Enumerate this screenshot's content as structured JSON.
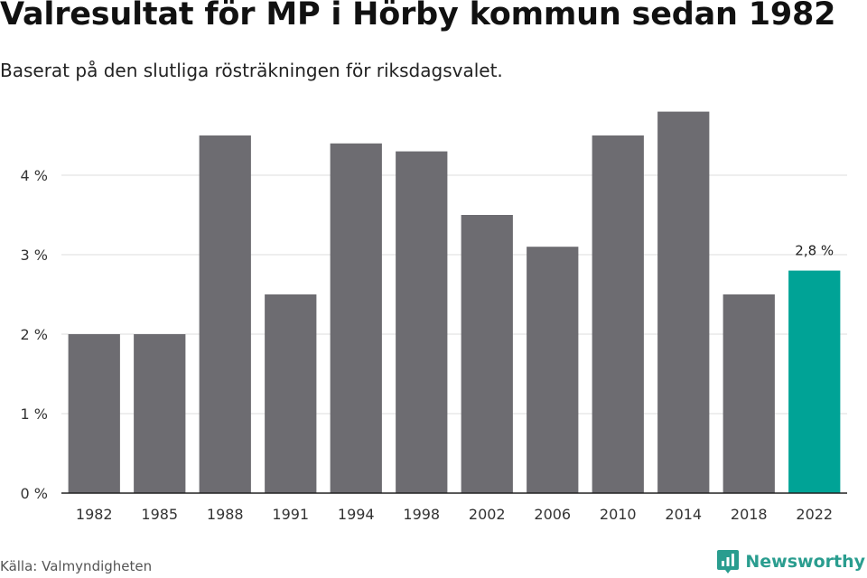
{
  "title": "Valresultat för MP i Hörby kommun sedan 1982",
  "subtitle": "Baserat på den slutliga rösträkningen för riksdagsvalet.",
  "source": "Källa: Valmyndigheten",
  "brand": {
    "name": "Newsworthy",
    "icon": "newsworthy-logo-icon"
  },
  "colors": {
    "bar": "#6d6c71",
    "highlight": "#00a396",
    "grid": "#dddddd",
    "axis": "#222222"
  },
  "chart_data": {
    "type": "bar",
    "title": "Valresultat för MP i Hörby kommun sedan 1982",
    "subtitle": "Baserat på den slutliga rösträkningen för riksdagsvalet.",
    "categories": [
      "1982",
      "1985",
      "1988",
      "1991",
      "1994",
      "1998",
      "2002",
      "2006",
      "2010",
      "2014",
      "2018",
      "2022"
    ],
    "values": [
      2.0,
      2.0,
      4.5,
      2.5,
      4.4,
      4.3,
      3.5,
      3.1,
      4.5,
      4.8,
      2.5,
      2.8
    ],
    "unit": "%",
    "ylim": [
      0,
      5
    ],
    "yticks": [
      0,
      1,
      2,
      3,
      4
    ],
    "ytick_labels": [
      "0 %",
      "1 %",
      "2 %",
      "3 %",
      "4 %"
    ],
    "grid": true,
    "highlight_index": 11,
    "annotations": [
      {
        "category": "2022",
        "text": "2,8 %"
      }
    ]
  }
}
